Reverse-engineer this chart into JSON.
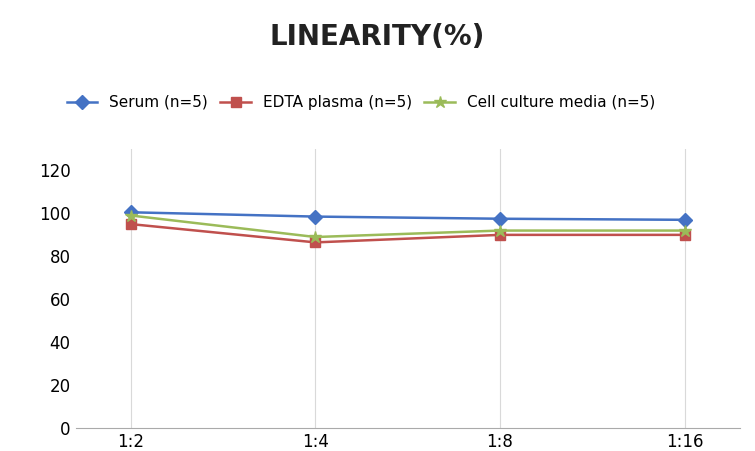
{
  "title": "LINEARITY(%)",
  "x_labels": [
    "1:2",
    "1:4",
    "1:8",
    "1:16"
  ],
  "x_positions": [
    0,
    1,
    2,
    3
  ],
  "series": [
    {
      "label": "Serum (n=5)",
      "color": "#4472C4",
      "marker": "D",
      "markersize": 7,
      "values": [
        100.5,
        98.5,
        97.5,
        97.0
      ]
    },
    {
      "label": "EDTA plasma (n=5)",
      "color": "#C0504D",
      "marker": "s",
      "markersize": 7,
      "values": [
        95.0,
        86.5,
        90.0,
        90.0
      ]
    },
    {
      "label": "Cell culture media (n=5)",
      "color": "#9BBB59",
      "marker": "*",
      "markersize": 9,
      "values": [
        99.0,
        89.0,
        92.0,
        92.0
      ]
    }
  ],
  "ylim": [
    0,
    130
  ],
  "yticks": [
    0,
    20,
    40,
    60,
    80,
    100,
    120
  ],
  "background_color": "#ffffff",
  "title_fontsize": 20,
  "legend_fontsize": 11,
  "tick_fontsize": 12,
  "grid_color": "#d0d0d0",
  "grid_alpha": 0.8,
  "linewidth": 1.8
}
